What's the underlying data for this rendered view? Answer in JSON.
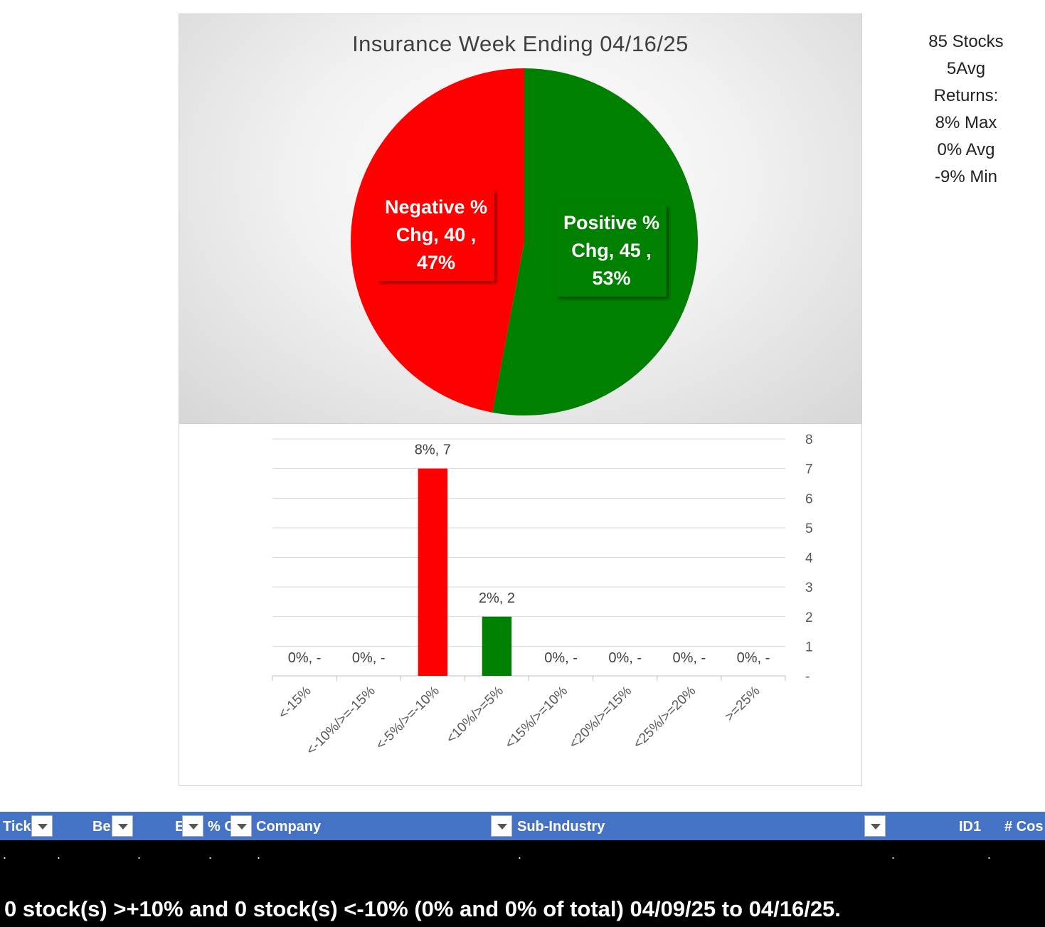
{
  "chart_data": [
    {
      "type": "pie",
      "title": "Insurance Week Ending 04/16/25",
      "slices": [
        {
          "name": "Positive % Chg",
          "value": 45,
          "percent": "53%",
          "color": "#008000",
          "label_lines": [
            "Positive %",
            "Chg,  45 ,",
            "53%"
          ]
        },
        {
          "name": "Negative % Chg",
          "value": 40,
          "percent": "47%",
          "color": "#ff0000",
          "label_lines": [
            "Negative %",
            "Chg,  40 ,",
            "47%"
          ]
        }
      ]
    },
    {
      "type": "bar",
      "categories": [
        "<-15%",
        "<-10%/>=-15%",
        "<-5%/>=-10%",
        "<10%/>=5%",
        "<15%/>=10%",
        "<20%/>=15%",
        "<25%/>=20%",
        ">=25%"
      ],
      "values": [
        0,
        0,
        7,
        2,
        0,
        0,
        0,
        0
      ],
      "data_labels": [
        "0%,  -",
        "0%,  -",
        "8%,  7",
        "2%,  2",
        "0%,  -",
        "0%,  -",
        "0%,  -",
        "0%,  -"
      ],
      "bar_colors": [
        "#ff0000",
        "#ff0000",
        "#ff0000",
        "#008000",
        "#008000",
        "#008000",
        "#008000",
        "#008000"
      ],
      "ylim": [
        0,
        8
      ],
      "yticks": [
        "-",
        "1",
        "2",
        "3",
        "4",
        "5",
        "6",
        "7",
        "8"
      ],
      "y_axis_side": "right",
      "grid": true
    }
  ],
  "side_stats": [
    "85 Stocks",
    "5Avg",
    "Returns:",
    "8% Max",
    "0% Avg",
    "-9% Min"
  ],
  "table": {
    "columns": [
      {
        "label": "Tick",
        "filter": true
      },
      {
        "label": "Be",
        "filter": true
      },
      {
        "label": "E",
        "filter": true
      },
      {
        "label": "% C",
        "filter": true
      },
      {
        "label": "Company",
        "filter": true
      },
      {
        "label": "Sub-Industry",
        "filter": true
      },
      {
        "label": "ID1",
        "filter": false
      },
      {
        "label": "# Cos",
        "filter": false
      }
    ],
    "row_cells": [
      ".",
      ".",
      ".",
      ".",
      ".",
      ".",
      ".",
      "."
    ]
  },
  "summary": "0 stock(s) >+10% and 0 stock(s) <-10% (0% and 0% of total) 04/09/25 to 04/16/25."
}
